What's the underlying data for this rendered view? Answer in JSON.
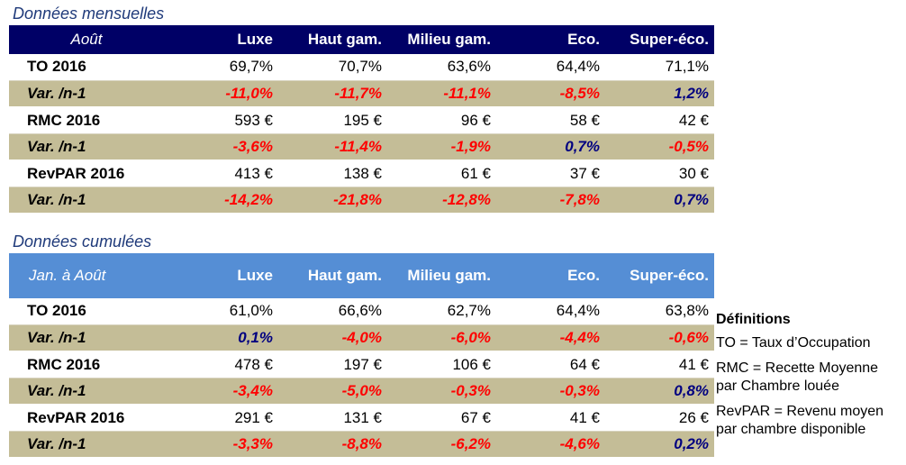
{
  "monthly": {
    "title": "Données mensuelles",
    "header": [
      "Août",
      "Luxe",
      "Haut gam.",
      "Milieu gam.",
      "Eco.",
      "Super-éco."
    ],
    "rows": [
      {
        "type": "val",
        "cells": [
          "TO 2016",
          "69,7%",
          "70,7%",
          "63,6%",
          "64,4%",
          "71,1%"
        ]
      },
      {
        "type": "var",
        "cells": [
          "Var. /n-1",
          "-11,0%",
          "-11,7%",
          "-11,1%",
          "-8,5%",
          "1,2%"
        ]
      },
      {
        "type": "val",
        "cells": [
          "RMC 2016",
          "593 €",
          "195 €",
          "96 €",
          "58 €",
          "42 €"
        ]
      },
      {
        "type": "var",
        "cells": [
          "Var. /n-1",
          "-3,6%",
          "-11,4%",
          "-1,9%",
          "0,7%",
          "-0,5%"
        ]
      },
      {
        "type": "val",
        "cells": [
          "RevPAR 2016",
          "413 €",
          "138 €",
          "61 €",
          "37 €",
          "30 €"
        ]
      },
      {
        "type": "var",
        "cells": [
          "Var. /n-1",
          "-14,2%",
          "-21,8%",
          "-12,8%",
          "-7,8%",
          "0,7%"
        ]
      }
    ]
  },
  "cumulative": {
    "title": "Données cumulées",
    "header": [
      "Jan. à Août",
      "Luxe",
      "Haut gam.",
      "Milieu gam.",
      "Eco.",
      "Super-éco."
    ],
    "rows": [
      {
        "type": "val",
        "cells": [
          "TO 2016",
          "61,0%",
          "66,6%",
          "62,7%",
          "64,4%",
          "63,8%"
        ]
      },
      {
        "type": "var",
        "cells": [
          "Var. /n-1",
          "0,1%",
          "-4,0%",
          "-6,0%",
          "-4,4%",
          "-0,6%"
        ]
      },
      {
        "type": "val",
        "cells": [
          "RMC 2016",
          "478 €",
          "197 €",
          "106 €",
          "64 €",
          "41 €"
        ]
      },
      {
        "type": "var",
        "cells": [
          "Var. /n-1",
          "-3,4%",
          "-5,0%",
          "-0,3%",
          "-0,3%",
          "0,8%"
        ]
      },
      {
        "type": "val",
        "cells": [
          "RevPAR 2016",
          "291 €",
          "131 €",
          "67 €",
          "41 €",
          "26 €"
        ]
      },
      {
        "type": "var",
        "cells": [
          "Var. /n-1",
          "-3,3%",
          "-8,8%",
          "-6,2%",
          "-4,6%",
          "0,2%"
        ]
      }
    ]
  },
  "definitions": {
    "title": "Définitions",
    "items": [
      "TO = Taux d’Occupation",
      "RMC = Recette Moyenne par Chambre louée",
      "RevPAR = Revenu moyen par chambre disponible"
    ]
  },
  "colors": {
    "negative": "#FF0000",
    "positive": "#000080",
    "monthly_header": "#000066",
    "cumulative_header": "#558ED5",
    "variation_row": "#C4BD97"
  }
}
